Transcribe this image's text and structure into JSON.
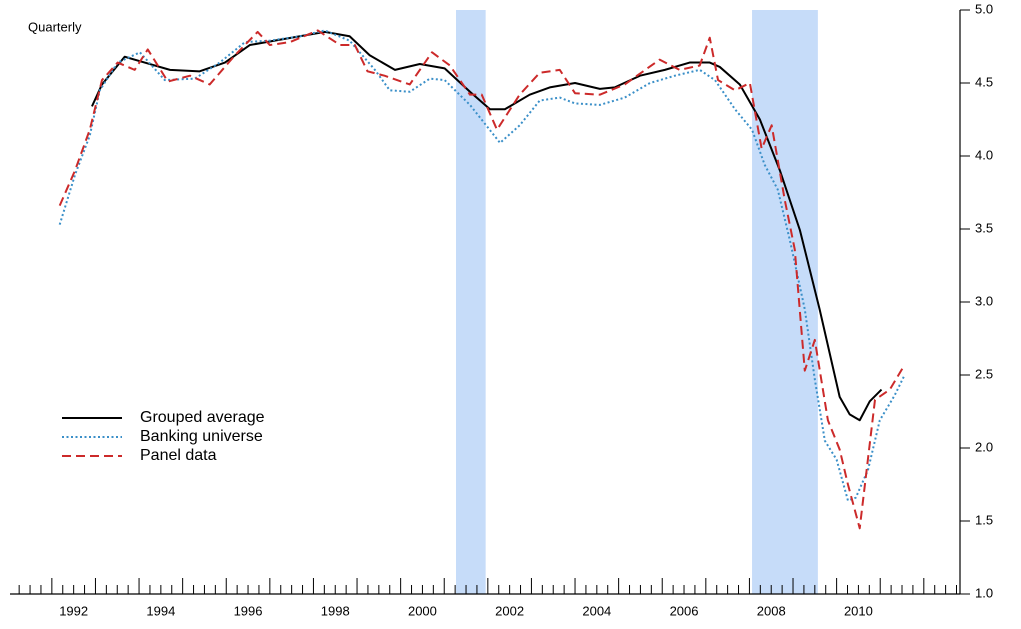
{
  "chart_data": {
    "type": "line",
    "title": "Quarterly",
    "xlim": [
      1991.04,
      2012.83
    ],
    "ylim": [
      1,
      5
    ],
    "xticks": [
      {
        "value": 1992.5,
        "label": "1992"
      },
      {
        "value": 1994.5,
        "label": "1994"
      },
      {
        "value": 1996.5,
        "label": "1996"
      },
      {
        "value": 1998.5,
        "label": "1998"
      },
      {
        "value": 2000.5,
        "label": "2000"
      },
      {
        "value": 2002.5,
        "label": "2002"
      },
      {
        "value": 2004.5,
        "label": "2004"
      },
      {
        "value": 2006.5,
        "label": "2006"
      },
      {
        "value": 2008.5,
        "label": "2008"
      },
      {
        "value": 2010.5,
        "label": "2010"
      }
    ],
    "yticks": [
      {
        "value": 1,
        "label": "1.0"
      },
      1.5,
      {
        "value": 2,
        "label": "2.0"
      },
      2.5,
      {
        "value": 3,
        "label": "3.0"
      },
      3.5,
      {
        "value": 4,
        "label": "4.0"
      },
      4.5,
      {
        "value": 5,
        "label": "5.0"
      }
    ],
    "y_axis_side": "right",
    "shaded_periods": [
      [
        2001.27,
        2001.95
      ],
      [
        2008.06,
        2009.57
      ]
    ],
    "shade_color": "#c6dcf9",
    "legend_position": "lower left",
    "series": [
      {
        "name": "Grouped average",
        "color": "#000000",
        "style": "solid",
        "x": [
          1992.92,
          1993.15,
          1993.67,
          1994.13,
          1994.71,
          1995.39,
          1995.97,
          1996.54,
          1997.11,
          1997.69,
          1998.26,
          1998.83,
          1999.29,
          1999.87,
          2000.44,
          2001.01,
          2001.59,
          2002.05,
          2002.39,
          2002.96,
          2003.42,
          2004.0,
          2004.57,
          2004.91,
          2005.49,
          2006.06,
          2006.63,
          2007.09,
          2007.32,
          2007.78,
          2008.24,
          2008.7,
          2009.16,
          2009.61,
          2010.07,
          2010.3,
          2010.53,
          2010.76,
          2011.03
        ],
        "values": [
          4.34,
          4.49,
          4.68,
          4.64,
          4.59,
          4.58,
          4.64,
          4.76,
          4.79,
          4.82,
          4.85,
          4.82,
          4.69,
          4.59,
          4.63,
          4.6,
          4.44,
          4.32,
          4.32,
          4.42,
          4.47,
          4.5,
          4.46,
          4.47,
          4.55,
          4.59,
          4.64,
          4.64,
          4.61,
          4.49,
          4.25,
          3.9,
          3.49,
          2.95,
          2.35,
          2.23,
          2.19,
          2.32,
          2.4
        ]
      },
      {
        "name": "Banking universe",
        "color": "#3a8fc8",
        "style": "dotted",
        "x": [
          1992.18,
          1992.53,
          1992.87,
          1993.1,
          1993.51,
          1994.02,
          1994.59,
          1995.28,
          1995.85,
          1996.43,
          1997.0,
          1997.69,
          1998.26,
          1998.83,
          1999.41,
          1999.75,
          2000.21,
          2000.67,
          2001.01,
          2001.59,
          2002.28,
          2002.73,
          2003.19,
          2003.65,
          2004.0,
          2004.57,
          2005.14,
          2005.72,
          2006.29,
          2006.86,
          2007.21,
          2007.67,
          2008.06,
          2008.35,
          2008.65,
          2008.93,
          2009.27,
          2009.5,
          2009.73,
          2010.0,
          2010.26,
          2010.44,
          2010.72,
          2010.99,
          2011.33,
          2011.56
        ],
        "values": [
          3.53,
          3.87,
          4.14,
          4.45,
          4.64,
          4.71,
          4.52,
          4.53,
          4.64,
          4.78,
          4.79,
          4.82,
          4.86,
          4.79,
          4.59,
          4.45,
          4.44,
          4.53,
          4.52,
          4.35,
          4.09,
          4.21,
          4.38,
          4.4,
          4.36,
          4.35,
          4.4,
          4.5,
          4.55,
          4.59,
          4.52,
          4.32,
          4.18,
          3.94,
          3.77,
          3.42,
          2.95,
          2.47,
          2.05,
          1.92,
          1.64,
          1.66,
          1.85,
          2.19,
          2.36,
          2.5
        ]
      },
      {
        "name": "Panel data",
        "color": "#cc2a2a",
        "style": "dashed",
        "x": [
          1992.18,
          1992.53,
          1992.87,
          1993.15,
          1993.51,
          1993.9,
          1994.2,
          1994.66,
          1995.17,
          1995.62,
          1996.2,
          1996.72,
          1997.0,
          1997.46,
          1998.1,
          1998.61,
          1998.95,
          1999.24,
          1999.63,
          2000.21,
          2000.72,
          2001.13,
          2001.59,
          2001.86,
          2002.21,
          2002.73,
          2003.19,
          2003.65,
          2004.0,
          2004.57,
          2005.14,
          2005.94,
          2006.4,
          2006.86,
          2007.09,
          2007.28,
          2007.67,
          2008.01,
          2008.28,
          2008.51,
          2008.81,
          2009.04,
          2009.27,
          2009.5,
          2009.8,
          2010.07,
          2010.26,
          2010.53,
          2010.88,
          2011.22,
          2011.56
        ],
        "values": [
          3.66,
          3.9,
          4.18,
          4.52,
          4.64,
          4.59,
          4.73,
          4.51,
          4.55,
          4.49,
          4.69,
          4.85,
          4.76,
          4.78,
          4.86,
          4.76,
          4.76,
          4.58,
          4.55,
          4.49,
          4.71,
          4.62,
          4.42,
          4.42,
          4.18,
          4.42,
          4.57,
          4.59,
          4.43,
          4.42,
          4.49,
          4.66,
          4.59,
          4.62,
          4.81,
          4.52,
          4.45,
          4.5,
          4.05,
          4.21,
          3.7,
          3.36,
          2.53,
          2.74,
          2.19,
          1.99,
          1.75,
          1.45,
          2.33,
          2.4,
          2.57
        ]
      }
    ]
  }
}
